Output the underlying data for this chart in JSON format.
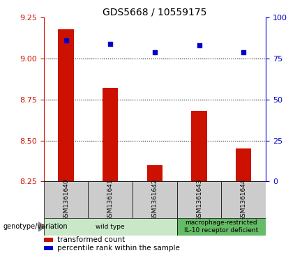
{
  "title": "GDS5668 / 10559175",
  "samples": [
    "GSM1361640",
    "GSM1361641",
    "GSM1361642",
    "GSM1361643",
    "GSM1361644"
  ],
  "transformed_counts": [
    9.18,
    8.82,
    8.35,
    8.68,
    8.45
  ],
  "percentile_ranks": [
    86,
    84,
    79,
    83,
    79
  ],
  "ylim_left": [
    8.25,
    9.25
  ],
  "ylim_right": [
    0,
    100
  ],
  "yticks_left": [
    8.25,
    8.5,
    8.75,
    9.0,
    9.25
  ],
  "yticks_right": [
    0,
    25,
    50,
    75,
    100
  ],
  "bar_color": "#cc1100",
  "dot_color": "#0000cc",
  "bg_sample_box": "#cccccc",
  "bg_wildtype": "#c0e8c0",
  "bg_macrophage": "#66bb66",
  "genotype_groups": [
    {
      "label": "wild type",
      "span": [
        0,
        3
      ],
      "color": "#c8e8c8"
    },
    {
      "label": "macrophage-restricted\nIL-10 receptor deficient",
      "span": [
        3,
        5
      ],
      "color": "#66bb66"
    }
  ],
  "legend_items": [
    {
      "color": "#cc1100",
      "label": "transformed count"
    },
    {
      "color": "#0000cc",
      "label": "percentile rank within the sample"
    }
  ],
  "genotype_label": "genotype/variation",
  "left_axis_color": "#cc1100",
  "right_axis_color": "#0000cc",
  "title_fontsize": 10,
  "tick_fontsize": 8,
  "bar_width": 0.35
}
